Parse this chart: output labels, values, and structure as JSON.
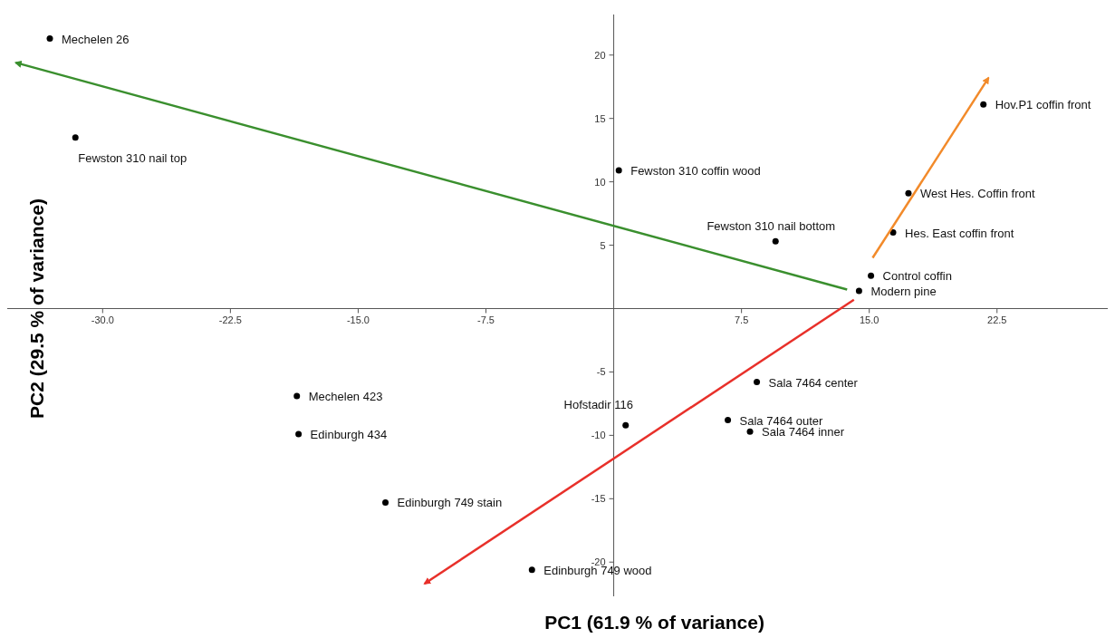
{
  "chart_data": {
    "type": "scatter",
    "xlabel": "PC1 (61.9 % of variance)",
    "ylabel": "PC2  (29.5 % of variance)",
    "xlim": [
      -35.6,
      29
    ],
    "ylim": [
      -22.7,
      23.2
    ],
    "xticks": [
      {
        "value": -30,
        "label": "-30.0"
      },
      -22.5,
      {
        "value": -15,
        "label": "-15.0"
      },
      -7.5,
      7.5,
      {
        "value": 15,
        "label": "15.0"
      },
      22.5
    ],
    "yticks": [
      -20,
      -15,
      -10,
      -5,
      5,
      10,
      15,
      20
    ],
    "grid": false,
    "marker": "circle",
    "series": [
      {
        "color": "#000000",
        "x": [
          -33.1,
          -31.6,
          0.3,
          9.5,
          21.7,
          17.3,
          16.4,
          15.1,
          14.4,
          8.4,
          6.7,
          8.0,
          0.7,
          -18.6,
          -18.5,
          -13.4,
          -4.8
        ],
        "values": [
          21.3,
          13.5,
          10.9,
          5.3,
          16.1,
          9.1,
          6.0,
          2.6,
          1.4,
          -5.8,
          -8.8,
          -9.7,
          -9.2,
          -6.9,
          -9.9,
          -15.3,
          -20.6
        ]
      },
      {
        "type": "line",
        "marker": "none",
        "color": "#3a8f2e",
        "x": [
          13.7,
          -35.1
        ],
        "values": [
          1.5,
          19.4
        ]
      },
      {
        "type": "line",
        "marker": "none",
        "color": "#f28a2a",
        "x": [
          15.2,
          22.0
        ],
        "values": [
          4.0,
          18.2
        ]
      },
      {
        "type": "line",
        "marker": "none",
        "color": "#e8302a",
        "x": [
          14.1,
          -11.1
        ],
        "values": [
          0.7,
          -21.7
        ]
      }
    ],
    "annotations": [
      {
        "text": "Mechelen 26",
        "x": -33.1,
        "y": 21.3
      },
      {
        "text": "Fewston 310 nail top",
        "x": -31.6,
        "y": 13.5
      },
      {
        "text": "Fewston 310 coffin wood",
        "x": 0.3,
        "y": 10.9
      },
      {
        "text": "Fewston 310 nail bottom",
        "x": 9.5,
        "y": 5.3
      },
      {
        "text": "Hov.P1 coffin front",
        "x": 21.7,
        "y": 16.1
      },
      {
        "text": "West Hes. Coffin front",
        "x": 17.3,
        "y": 9.1
      },
      {
        "text": "Hes. East coffin front",
        "x": 16.4,
        "y": 6.0
      },
      {
        "text": "Control coffin",
        "x": 15.1,
        "y": 2.6
      },
      {
        "text": "Modern pine",
        "x": 14.4,
        "y": 1.4
      },
      {
        "text": "Sala 7464 center",
        "x": 8.4,
        "y": -5.8
      },
      {
        "text": "Sala 7464 outer",
        "x": 6.7,
        "y": -8.8
      },
      {
        "text": "Sala 7464 inner",
        "x": 8.0,
        "y": -9.7
      },
      {
        "text": "Hofstadir 116",
        "x": 0.7,
        "y": -9.2
      },
      {
        "text": "Mechelen 423",
        "x": -18.6,
        "y": -6.9
      },
      {
        "text": "Edinburgh 434",
        "x": -18.5,
        "y": -9.9
      },
      {
        "text": "Edinburgh 749 stain",
        "x": -13.4,
        "y": -15.3
      },
      {
        "text": "Edinburgh 749 wood",
        "x": -4.8,
        "y": -20.6
      }
    ]
  }
}
